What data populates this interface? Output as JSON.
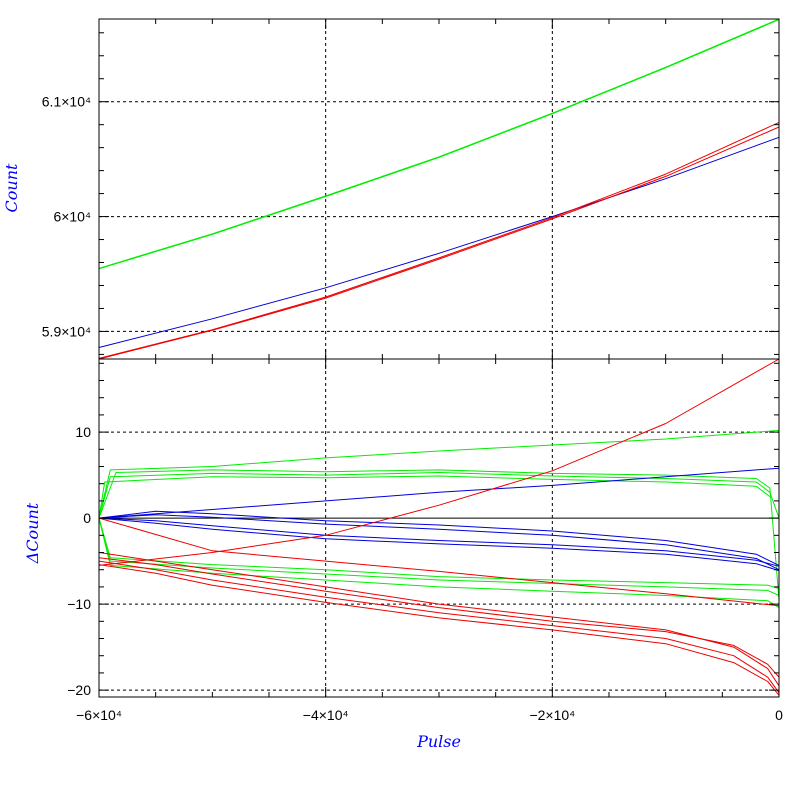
{
  "chart_data": [
    {
      "type": "line",
      "panel": "top",
      "ylabel": "Count",
      "xlim": [
        -60000,
        0
      ],
      "ylim": [
        58760,
        61720
      ],
      "grid": true,
      "yticks": [
        {
          "value": 59000,
          "label": "5.9×10⁴"
        },
        {
          "value": 60000,
          "label": "6×10⁴"
        },
        {
          "value": 61000,
          "label": "6.1×10⁴"
        }
      ],
      "xgrid": [
        -40000,
        -20000
      ],
      "series": [
        {
          "color": "#00ee00",
          "x": [
            -60000,
            -50000,
            -40000,
            -30000,
            -20000,
            -10000,
            0
          ],
          "y": [
            59550,
            59850,
            60180,
            60520,
            60900,
            61300,
            61720
          ]
        },
        {
          "color": "#00ee00",
          "x": [
            -60000,
            -50000,
            -40000,
            -30000,
            -20000,
            -10000,
            0
          ],
          "y": [
            59545,
            59845,
            60175,
            60515,
            60895,
            61295,
            61715
          ]
        },
        {
          "color": "#0000cc",
          "x": [
            -60000,
            -50000,
            -40000,
            -30000,
            -20000,
            -10000,
            0
          ],
          "y": [
            58860,
            59110,
            59380,
            59680,
            60000,
            60330,
            60690
          ]
        },
        {
          "color": "#ee0000",
          "x": [
            -60000,
            -50000,
            -40000,
            -30000,
            -20000,
            -10000,
            0
          ],
          "y": [
            58760,
            59010,
            59290,
            59630,
            59980,
            60350,
            60780
          ]
        },
        {
          "color": "#ee0000",
          "x": [
            -60000,
            -50000,
            -40000,
            -30000,
            -20000,
            -10000,
            0
          ],
          "y": [
            58765,
            59015,
            59300,
            59640,
            59990,
            60370,
            60820
          ]
        }
      ]
    },
    {
      "type": "line",
      "panel": "bottom",
      "ylabel": "ΔCount",
      "xlabel": "Pulse",
      "xlim": [
        -60000,
        0
      ],
      "ylim": [
        -20.8,
        18.5
      ],
      "grid": true,
      "yticks": [
        {
          "value": -20,
          "label": "−20"
        },
        {
          "value": -10,
          "label": "−10"
        },
        {
          "value": 0,
          "label": "0"
        },
        {
          "value": 10,
          "label": "10"
        }
      ],
      "xticks": [
        {
          "value": -60000,
          "label": "−6×10⁴"
        },
        {
          "value": -40000,
          "label": "−4×10⁴"
        },
        {
          "value": -20000,
          "label": "−2×10⁴"
        },
        {
          "value": 0,
          "label": "0"
        }
      ],
      "xgrid": [
        -40000,
        -20000
      ],
      "series": [
        {
          "color": "#00ee00",
          "x": [
            -60000,
            -59000,
            -50000,
            -40000,
            -30000,
            -20000,
            -10000,
            -2000,
            -800,
            0
          ],
          "y": [
            0,
            4.8,
            5.2,
            5.0,
            5.3,
            4.9,
            4.6,
            4.2,
            3.0,
            0
          ]
        },
        {
          "color": "#00ee00",
          "x": [
            -60000,
            -58500,
            -50000,
            -40000,
            -30000,
            -20000,
            -10000,
            -2000,
            -800,
            0
          ],
          "y": [
            0,
            5.3,
            5.6,
            5.4,
            5.6,
            5.2,
            5.0,
            4.6,
            3.5,
            -9.5
          ]
        },
        {
          "color": "#00ee00",
          "x": [
            -60000,
            -59500,
            -50000,
            -40000,
            -30000,
            -20000,
            -10000,
            -2000,
            -800
          ],
          "y": [
            0,
            4.2,
            4.8,
            4.7,
            4.9,
            4.5,
            4.2,
            3.7,
            2.5
          ]
        },
        {
          "color": "#00ee00",
          "x": [
            -60000,
            -59000,
            -50000,
            -40000,
            -30000,
            -20000,
            -10000,
            0
          ],
          "y": [
            0,
            5.6,
            6.0,
            7.0,
            7.8,
            8.5,
            9.2,
            10.2
          ]
        },
        {
          "color": "#00ee00",
          "x": [
            -60000,
            -59000,
            -50000,
            -40000,
            -30000,
            -20000,
            -10000,
            -1000,
            0
          ],
          "y": [
            0,
            -5.0,
            -5.8,
            -6.5,
            -7.2,
            -7.6,
            -8.0,
            -8.4,
            -9.0
          ]
        },
        {
          "color": "#00ee00",
          "x": [
            -60000,
            -59000,
            -50000,
            -40000,
            -30000,
            -20000,
            -10000,
            -1000,
            0
          ],
          "y": [
            0,
            -5.5,
            -6.4,
            -7.2,
            -8.0,
            -8.5,
            -9.0,
            -9.6,
            -10.4
          ]
        },
        {
          "color": "#00ee00",
          "x": [
            -60000,
            -59000,
            -50000,
            -40000,
            -30000,
            -20000,
            -10000,
            -1000,
            0
          ],
          "y": [
            0,
            -4.6,
            -5.4,
            -6.0,
            -6.8,
            -7.2,
            -7.5,
            -7.8,
            -8.2
          ]
        },
        {
          "color": "#0000dd",
          "x": [
            -60000,
            -55000,
            -50000,
            -40000,
            -30000,
            -20000,
            -10000,
            -2000,
            0
          ],
          "y": [
            0,
            0.8,
            0.5,
            -0.3,
            -0.8,
            -1.5,
            -2.6,
            -4.2,
            -5.5
          ]
        },
        {
          "color": "#0000dd",
          "x": [
            -60000,
            -55000,
            -50000,
            -40000,
            -30000,
            -20000,
            -10000,
            -2000,
            0
          ],
          "y": [
            0,
            0.4,
            0.1,
            -0.7,
            -1.3,
            -2.0,
            -3.1,
            -4.7,
            -6.0
          ]
        },
        {
          "color": "#0000dd",
          "x": [
            -60000,
            -55000,
            -50000,
            -40000,
            -30000,
            -20000,
            -10000,
            -2000,
            0
          ],
          "y": [
            0,
            -0.3,
            -0.9,
            -2.0,
            -2.6,
            -3.1,
            -3.8,
            -4.9,
            -5.6
          ]
        },
        {
          "color": "#0000dd",
          "x": [
            -60000,
            -55000,
            -50000,
            -40000,
            -30000,
            -20000,
            -10000,
            -2000,
            0
          ],
          "y": [
            0,
            -0.6,
            -1.3,
            -2.4,
            -3.0,
            -3.5,
            -4.2,
            -5.3,
            -6.1
          ]
        },
        {
          "color": "#0000dd",
          "x": [
            -60000,
            -50000,
            -40000,
            -30000,
            -20000,
            -10000,
            0
          ],
          "y": [
            0,
            1.0,
            2.0,
            3.0,
            3.8,
            4.8,
            5.8
          ]
        },
        {
          "color": "#ee0000",
          "x": [
            -60000,
            -55000,
            -50000,
            -40000,
            -30000,
            -20000,
            -10000,
            -4000,
            -1000,
            0
          ],
          "y": [
            -4.0,
            -5.0,
            -6.0,
            -8.0,
            -10.0,
            -11.5,
            -13.0,
            -15.0,
            -17.5,
            -19.5
          ]
        },
        {
          "color": "#ee0000",
          "x": [
            -60000,
            -55000,
            -50000,
            -40000,
            -30000,
            -20000,
            -10000,
            -4000,
            -1000,
            0
          ],
          "y": [
            -5.0,
            -6.0,
            -7.2,
            -9.2,
            -11.0,
            -12.5,
            -14.0,
            -16.0,
            -18.5,
            -20.3
          ]
        },
        {
          "color": "#ee0000",
          "x": [
            -60000,
            -55000,
            -50000,
            -40000,
            -30000,
            -20000,
            -10000,
            -4000,
            -1000,
            0
          ],
          "y": [
            -4.6,
            -5.4,
            -6.5,
            -8.5,
            -10.4,
            -12.0,
            -13.2,
            -14.8,
            -17.0,
            -18.5
          ]
        },
        {
          "color": "#ee0000",
          "x": [
            -60000,
            -55000,
            -50000,
            -40000,
            -30000,
            -20000,
            -10000,
            -4000,
            -1000,
            0
          ],
          "y": [
            -5.4,
            -6.4,
            -7.8,
            -9.8,
            -11.6,
            -13.0,
            -14.6,
            -16.8,
            -19.0,
            -20.6
          ]
        },
        {
          "color": "#ee0000",
          "x": [
            -60000,
            -50000,
            -40000,
            -30000,
            -20000,
            -10000,
            0
          ],
          "y": [
            0,
            -3.8,
            -5.0,
            -6.2,
            -7.5,
            -8.8,
            -10.2
          ]
        },
        {
          "color": "#ee0000",
          "x": [
            -60000,
            -50000,
            -40000,
            -30000,
            -20000,
            -10000,
            0
          ],
          "y": [
            -5.5,
            -4.0,
            -2.0,
            1.5,
            5.5,
            11.0,
            18.5
          ]
        }
      ]
    }
  ]
}
